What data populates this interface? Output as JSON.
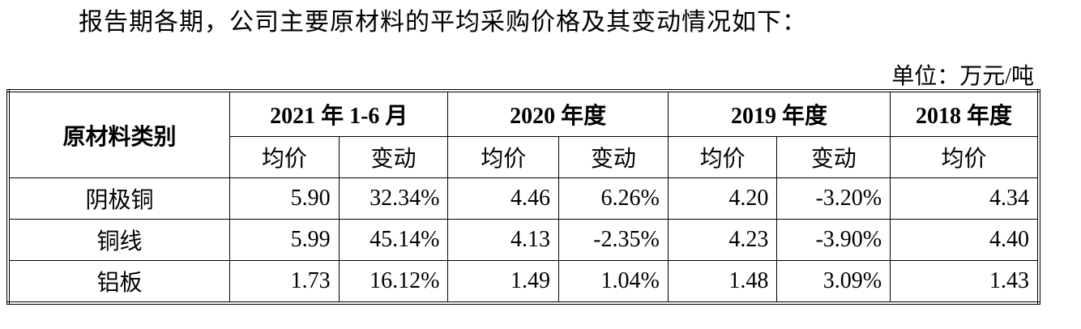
{
  "intro": "报告期各期，公司主要原材料的平均采购价格及其变动情况如下：",
  "unit": "单位：万元/吨",
  "table": {
    "corner": "原材料类别",
    "groups": [
      {
        "label": "2021 年 1-6 月",
        "sub": [
          "均价",
          "变动"
        ]
      },
      {
        "label": "2020 年度",
        "sub": [
          "均价",
          "变动"
        ]
      },
      {
        "label": "2019 年度",
        "sub": [
          "均价",
          "变动"
        ]
      },
      {
        "label": "2018 年度",
        "sub": [
          "均价"
        ]
      }
    ],
    "rows": [
      [
        "阴极铜",
        "5.90",
        "32.34%",
        "4.46",
        "6.26%",
        "4.20",
        "-3.20%",
        "4.34"
      ],
      [
        "铜线",
        "5.99",
        "45.14%",
        "4.13",
        "-2.35%",
        "4.23",
        "-3.90%",
        "4.40"
      ],
      [
        "铝板",
        "1.73",
        "16.12%",
        "1.49",
        "1.04%",
        "1.48",
        "3.09%",
        "1.43"
      ]
    ]
  }
}
